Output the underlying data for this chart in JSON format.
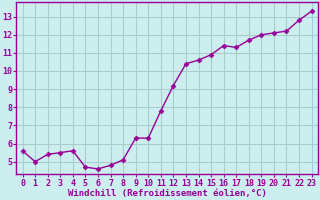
{
  "x": [
    0,
    1,
    2,
    3,
    4,
    5,
    6,
    7,
    8,
    9,
    10,
    11,
    12,
    13,
    14,
    15,
    16,
    17,
    18,
    19,
    20,
    21,
    22,
    23
  ],
  "y": [
    5.6,
    5.0,
    5.4,
    5.5,
    5.6,
    4.7,
    4.6,
    4.8,
    5.1,
    6.3,
    6.3,
    7.8,
    9.2,
    10.4,
    10.6,
    10.9,
    11.4,
    11.3,
    11.7,
    12.0,
    12.1,
    12.2,
    12.8,
    13.3
  ],
  "line_color": "#990099",
  "marker": "D",
  "marker_size": 2.5,
  "bg_color": "#cceeee",
  "grid_color": "#aacccc",
  "xlabel": "Windchill (Refroidissement éolien,°C)",
  "ylabel_ticks": [
    5,
    6,
    7,
    8,
    9,
    10,
    11,
    12,
    13
  ],
  "xlim": [
    -0.5,
    23.5
  ],
  "ylim": [
    4.3,
    13.8
  ],
  "xticks": [
    0,
    1,
    2,
    3,
    4,
    5,
    6,
    7,
    8,
    9,
    10,
    11,
    12,
    13,
    14,
    15,
    16,
    17,
    18,
    19,
    20,
    21,
    22,
    23
  ],
  "axis_color": "#990099",
  "label_fontsize": 6.5,
  "tick_fontsize": 6
}
